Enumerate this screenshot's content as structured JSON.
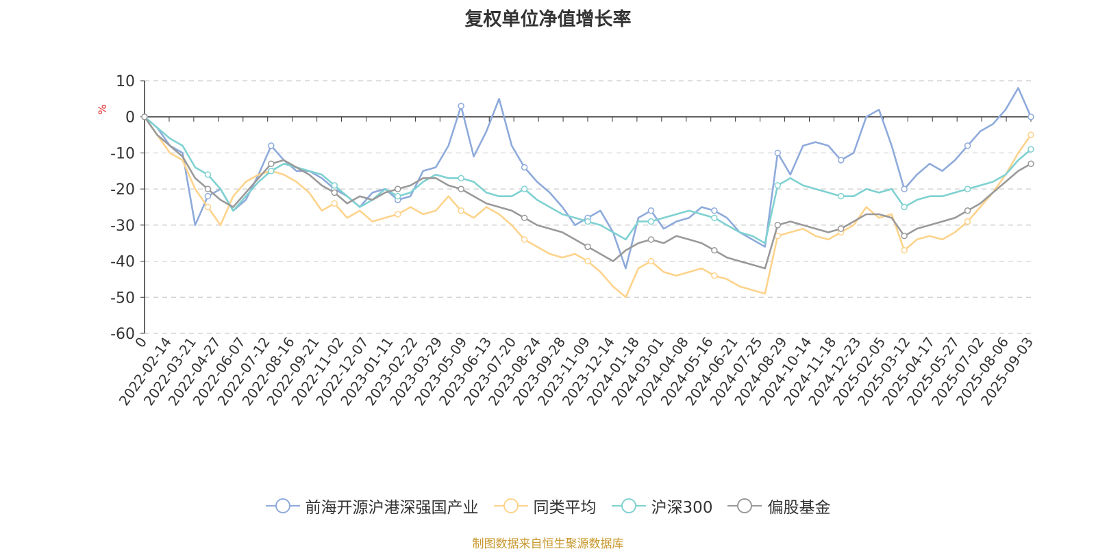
{
  "chart_data": {
    "type": "line",
    "title": "复权单位净值增长率",
    "ylabel": "%",
    "ylim": [
      -60,
      10
    ],
    "yticks": [
      10,
      0,
      -10,
      -20,
      -30,
      -40,
      -50,
      -60
    ],
    "grid": true,
    "legend_position": "bottom",
    "x_tick_labels": [
      "0",
      "2022-02-14",
      "2022-03-21",
      "2022-04-27",
      "2022-06-07",
      "2022-07-12",
      "2022-08-16",
      "2022-09-21",
      "2022-11-02",
      "2022-12-07",
      "2023-01-11",
      "2023-02-22",
      "2023-03-29",
      "2023-05-09",
      "2023-06-13",
      "2023-07-20",
      "2023-08-24",
      "2023-09-28",
      "2023-11-09",
      "2023-12-14",
      "2024-01-18",
      "2024-03-01",
      "2024-04-08",
      "2024-05-16",
      "2024-06-21",
      "2024-07-25",
      "2024-08-29",
      "2024-10-14",
      "2024-11-18",
      "2024-12-23",
      "2025-02-05",
      "2025-03-12",
      "2025-04-17",
      "2025-05-27",
      "2025-07-02",
      "2025-08-06",
      "2025-09-03"
    ],
    "series": [
      {
        "name": "前海开源沪港深强国产业",
        "color": "#8eaadb",
        "values": [
          0,
          -3,
          -8,
          -10,
          -30,
          -22,
          -20,
          -26,
          -23,
          -16,
          -8,
          -12,
          -15,
          -15,
          -17,
          -20,
          -22,
          -25,
          -21,
          -20,
          -23,
          -22,
          -15,
          -14,
          -8,
          3,
          -11,
          -4,
          5,
          -8,
          -14,
          -18,
          -21,
          -25,
          -30,
          -28,
          -26,
          -32,
          -42,
          -28,
          -26,
          -31,
          -29,
          -28,
          -25,
          -26,
          -28,
          -32,
          -34,
          -36,
          -10,
          -16,
          -8,
          -7,
          -8,
          -12,
          -10,
          0,
          2,
          -8,
          -20,
          -16,
          -13,
          -15,
          -12,
          -8,
          -4,
          -2,
          2,
          8,
          0
        ]
      },
      {
        "name": "同类平均",
        "color": "#fdd38b",
        "values": [
          0,
          -5,
          -10,
          -12,
          -20,
          -25,
          -30,
          -22,
          -18,
          -16,
          -15,
          -16,
          -18,
          -21,
          -26,
          -24,
          -28,
          -26,
          -29,
          -28,
          -27,
          -25,
          -27,
          -26,
          -22,
          -26,
          -28,
          -25,
          -27,
          -30,
          -34,
          -36,
          -38,
          -39,
          -38,
          -40,
          -43,
          -47,
          -50,
          -42,
          -40,
          -43,
          -44,
          -43,
          -42,
          -44,
          -45,
          -47,
          -48,
          -49,
          -33,
          -32,
          -31,
          -33,
          -34,
          -32,
          -30,
          -25,
          -28,
          -27,
          -37,
          -34,
          -33,
          -34,
          -32,
          -29,
          -25,
          -21,
          -16,
          -10,
          -5
        ]
      },
      {
        "name": "沪深300",
        "color": "#7fd1d1",
        "values": [
          0,
          -3,
          -6,
          -8,
          -14,
          -16,
          -20,
          -26,
          -22,
          -18,
          -15,
          -13,
          -14,
          -15,
          -16,
          -19,
          -22,
          -25,
          -23,
          -20,
          -22,
          -21,
          -18,
          -16,
          -17,
          -17,
          -18,
          -21,
          -22,
          -22,
          -20,
          -23,
          -25,
          -27,
          -28,
          -29,
          -30,
          -32,
          -34,
          -29,
          -29,
          -28,
          -27,
          -26,
          -27,
          -28,
          -30,
          -32,
          -33,
          -35,
          -19,
          -17,
          -19,
          -20,
          -21,
          -22,
          -22,
          -20,
          -21,
          -20,
          -25,
          -23,
          -22,
          -22,
          -21,
          -20,
          -19,
          -18,
          -16,
          -12,
          -9
        ]
      },
      {
        "name": "偏股基金",
        "color": "#999999",
        "values": [
          0,
          -5,
          -8,
          -11,
          -17,
          -20,
          -23,
          -25,
          -21,
          -17,
          -13,
          -12,
          -14,
          -16,
          -19,
          -21,
          -24,
          -22,
          -23,
          -21,
          -20,
          -19,
          -17,
          -17,
          -19,
          -20,
          -22,
          -24,
          -25,
          -26,
          -28,
          -30,
          -31,
          -32,
          -34,
          -36,
          -38,
          -40,
          -37,
          -35,
          -34,
          -35,
          -33,
          -34,
          -35,
          -37,
          -39,
          -40,
          -41,
          -42,
          -30,
          -29,
          -30,
          -31,
          -32,
          -31,
          -29,
          -27,
          -27,
          -28,
          -33,
          -31,
          -30,
          -29,
          -28,
          -26,
          -24,
          -21,
          -18,
          -15,
          -13
        ]
      }
    ]
  }
}
